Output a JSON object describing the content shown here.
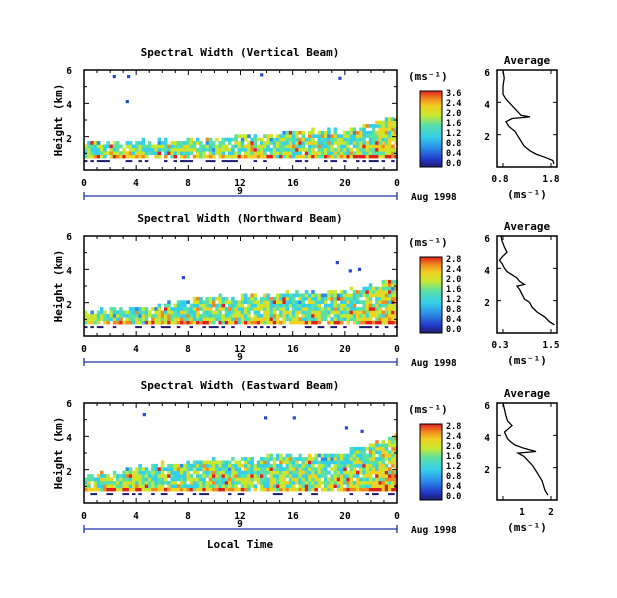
{
  "figure": {
    "xlabel": "Local Time",
    "date_label": "Aug 1998",
    "day_label": "9",
    "ylabel": "Height (km)",
    "unit": "(ms⁻¹)",
    "unit_small": "(ms⁻¹)",
    "avg_title": "Average"
  },
  "panels": [
    {
      "title": "Spectral Width (Vertical Beam)",
      "colorbar_ticks": [
        "3.6",
        "2.4",
        "2.0",
        "1.6",
        "1.2",
        "0.8",
        "0.4",
        "0.0"
      ],
      "avg_xticks": [
        "0.8",
        "1.8"
      ]
    },
    {
      "title": "Spectral Width (Northward Beam)",
      "colorbar_ticks": [
        "2.8",
        "2.4",
        "2.0",
        "1.6",
        "1.2",
        "0.8",
        "0.4",
        "0.0"
      ],
      "avg_xticks": [
        "0.3",
        "1.5"
      ]
    },
    {
      "title": "Spectral Width (Eastward Beam)",
      "colorbar_ticks": [
        "2.8",
        "2.4",
        "2.0",
        "1.6",
        "1.2",
        "0.8",
        "0.4",
        "0.0"
      ],
      "avg_xticks": [
        "1",
        "2"
      ]
    }
  ],
  "chart_data": [
    {
      "type": "heatmap",
      "title": "Spectral Width (Vertical Beam)",
      "xlabel": "",
      "ylabel": "Height (km)",
      "x_ticks": [
        "0",
        "4",
        "8",
        "12",
        "16",
        "20",
        "0"
      ],
      "y_ticks": [
        "2",
        "4",
        "6"
      ],
      "xlim": [
        0,
        24
      ],
      "ylim": [
        0,
        6
      ],
      "colorbar_label": "(ms⁻¹)",
      "colorbar_ticks": [
        "3.6",
        "2.4",
        "2.0",
        "1.6",
        "1.2",
        "0.8",
        "0.4",
        "0.0"
      ],
      "echo_top_km": [
        [
          0,
          1.6
        ],
        [
          4,
          1.6
        ],
        [
          8,
          1.7
        ],
        [
          12,
          1.9
        ],
        [
          16,
          2.2
        ],
        [
          20,
          2.2
        ],
        [
          24,
          3.2
        ]
      ],
      "isolated_echoes": [
        [
          2.2,
          5.7
        ],
        [
          3.2,
          4.2
        ],
        [
          3.3,
          5.7
        ],
        [
          13.5,
          5.8
        ],
        [
          19.5,
          5.6
        ]
      ]
    },
    {
      "type": "line",
      "title": "Average",
      "xlabel": "(ms⁻¹)",
      "ylabel": "",
      "x_ticks": [
        "0.8",
        "1.8"
      ],
      "y_ticks": [
        "2",
        "4",
        "6"
      ],
      "xlim": [
        0.8,
        1.8
      ],
      "ylim": [
        0,
        6
      ],
      "series": [
        {
          "x": [
            1.75,
            1.73,
            1.6,
            1.45,
            1.35,
            1.25,
            1.2,
            1.15,
            1.1,
            1.0,
            0.95,
            1.05,
            1.35,
            1.2,
            1.15,
            1.1,
            1.05,
            1.0,
            0.95,
            0.9,
            0.9,
            0.92,
            0.9
          ],
          "y": [
            0.2,
            0.4,
            0.6,
            0.8,
            1.0,
            1.3,
            1.6,
            1.9,
            2.2,
            2.5,
            2.8,
            3.0,
            3.1,
            3.2,
            3.4,
            3.6,
            3.8,
            4.0,
            4.2,
            4.5,
            5.0,
            5.5,
            6.0
          ]
        }
      ]
    },
    {
      "type": "heatmap",
      "title": "Spectral Width (Northward Beam)",
      "xlabel": "",
      "ylabel": "Height (km)",
      "x_ticks": [
        "0",
        "4",
        "8",
        "12",
        "16",
        "20",
        "0"
      ],
      "y_ticks": [
        "2",
        "4",
        "6"
      ],
      "xlim": [
        0,
        24
      ],
      "ylim": [
        0,
        6
      ],
      "colorbar_label": "(ms⁻¹)",
      "colorbar_ticks": [
        "2.8",
        "2.4",
        "2.0",
        "1.6",
        "1.2",
        "0.8",
        "0.4",
        "0.0"
      ],
      "echo_top_km": [
        [
          0,
          1.4
        ],
        [
          4,
          1.5
        ],
        [
          8,
          2.1
        ],
        [
          12,
          2.3
        ],
        [
          16,
          2.5
        ],
        [
          20,
          2.6
        ],
        [
          24,
          3.3
        ]
      ],
      "isolated_echoes": [
        [
          7.5,
          3.6
        ],
        [
          19.3,
          4.5
        ],
        [
          20.3,
          4.0
        ],
        [
          21.0,
          4.1
        ]
      ]
    },
    {
      "type": "line",
      "title": "Average",
      "xlabel": "(ms⁻¹)",
      "ylabel": "",
      "x_ticks": [
        "0.3",
        "1.5"
      ],
      "y_ticks": [
        "2",
        "4",
        "6"
      ],
      "xlim": [
        0.3,
        1.5
      ],
      "ylim": [
        0,
        6
      ],
      "series": [
        {
          "x": [
            1.45,
            1.35,
            1.25,
            1.1,
            1.0,
            0.95,
            0.85,
            0.8,
            0.75,
            0.7,
            0.85,
            0.75,
            0.7,
            0.6,
            0.5,
            0.45,
            0.4,
            0.35,
            0.4,
            0.5,
            0.45,
            0.4,
            0.38
          ],
          "y": [
            0.5,
            0.7,
            1.0,
            1.3,
            1.6,
            1.9,
            2.1,
            2.4,
            2.7,
            2.9,
            3.0,
            3.2,
            3.4,
            3.6,
            3.8,
            4.0,
            4.3,
            4.5,
            4.7,
            5.0,
            5.3,
            5.7,
            6.0
          ]
        }
      ]
    },
    {
      "type": "heatmap",
      "title": "Spectral Width (Eastward Beam)",
      "xlabel": "Local Time",
      "ylabel": "Height (km)",
      "x_ticks": [
        "0",
        "4",
        "8",
        "12",
        "16",
        "20",
        "0"
      ],
      "y_ticks": [
        "2",
        "4",
        "6"
      ],
      "xlim": [
        0,
        24
      ],
      "ylim": [
        0,
        6
      ],
      "colorbar_label": "(ms⁻¹)",
      "colorbar_ticks": [
        "2.8",
        "2.4",
        "2.0",
        "1.6",
        "1.2",
        "0.8",
        "0.4",
        "0.0"
      ],
      "echo_top_km": [
        [
          0,
          1.5
        ],
        [
          4,
          2.0
        ],
        [
          8,
          2.4
        ],
        [
          12,
          2.6
        ],
        [
          16,
          2.8
        ],
        [
          20,
          3.0
        ],
        [
          24,
          3.9
        ]
      ],
      "isolated_echoes": [
        [
          4.5,
          5.4
        ],
        [
          13.8,
          5.2
        ],
        [
          16.0,
          5.2
        ],
        [
          20.0,
          4.6
        ],
        [
          21.2,
          4.4
        ]
      ]
    },
    {
      "type": "line",
      "title": "Average",
      "xlabel": "(ms⁻¹)",
      "ylabel": "",
      "x_ticks": [
        "1",
        "2"
      ],
      "y_ticks": [
        "2",
        "4",
        "6"
      ],
      "xlim": [
        0.3,
        2.3
      ],
      "ylim": [
        0,
        6
      ],
      "series": [
        {
          "x": [
            2.0,
            1.9,
            1.85,
            1.8,
            1.7,
            1.6,
            1.5,
            1.35,
            1.2,
            1.0,
            1.6,
            1.2,
            0.9,
            0.75,
            0.65,
            0.6,
            0.55,
            0.8,
            0.65,
            0.6,
            0.55,
            0.5
          ],
          "y": [
            0.3,
            0.6,
            0.9,
            1.2,
            1.5,
            1.8,
            2.1,
            2.4,
            2.7,
            2.9,
            3.0,
            3.2,
            3.4,
            3.6,
            3.8,
            4.0,
            4.2,
            4.6,
            4.9,
            5.2,
            5.6,
            6.0
          ]
        }
      ]
    }
  ]
}
